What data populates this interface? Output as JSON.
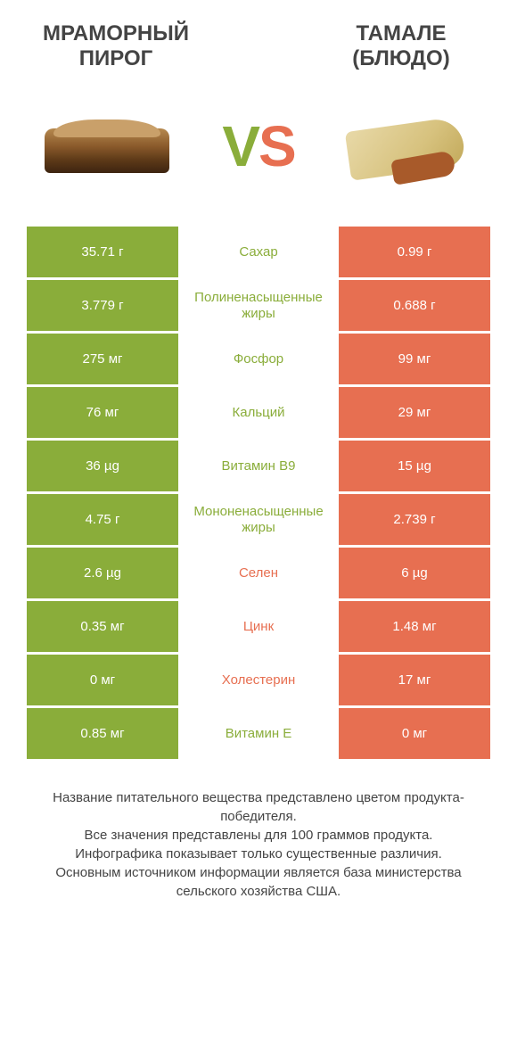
{
  "header": {
    "left_title": "МРАМОРНЫЙ ПИРОГ",
    "right_title": "ТАМАЛЕ (БЛЮДО)",
    "vs_v": "V",
    "vs_s": "S"
  },
  "colors": {
    "green": "#8aad3a",
    "orange": "#e76f51",
    "text": "#444444",
    "background": "#ffffff"
  },
  "rows": [
    {
      "left": "35.71 г",
      "label": "Сахар",
      "right": "0.99 г",
      "winner": "left"
    },
    {
      "left": "3.779 г",
      "label": "Полиненасыщенные жиры",
      "right": "0.688 г",
      "winner": "left"
    },
    {
      "left": "275 мг",
      "label": "Фосфор",
      "right": "99 мг",
      "winner": "left"
    },
    {
      "left": "76 мг",
      "label": "Кальций",
      "right": "29 мг",
      "winner": "left"
    },
    {
      "left": "36 µg",
      "label": "Витамин B9",
      "right": "15 µg",
      "winner": "left"
    },
    {
      "left": "4.75 г",
      "label": "Мононенасыщенные жиры",
      "right": "2.739 г",
      "winner": "left"
    },
    {
      "left": "2.6 µg",
      "label": "Селен",
      "right": "6 µg",
      "winner": "right"
    },
    {
      "left": "0.35 мг",
      "label": "Цинк",
      "right": "1.48 мг",
      "winner": "right"
    },
    {
      "left": "0 мг",
      "label": "Холестерин",
      "right": "17 мг",
      "winner": "right"
    },
    {
      "left": "0.85 мг",
      "label": "Витамин E",
      "right": "0 мг",
      "winner": "left"
    }
  ],
  "footer": {
    "line1": "Название питательного вещества представлено цветом продукта-победителя.",
    "line2": "Все значения представлены для 100 граммов продукта.",
    "line3": "Инфографика показывает только существенные различия.",
    "line4": "Основным источником информации является база министерства сельского хозяйства США."
  }
}
